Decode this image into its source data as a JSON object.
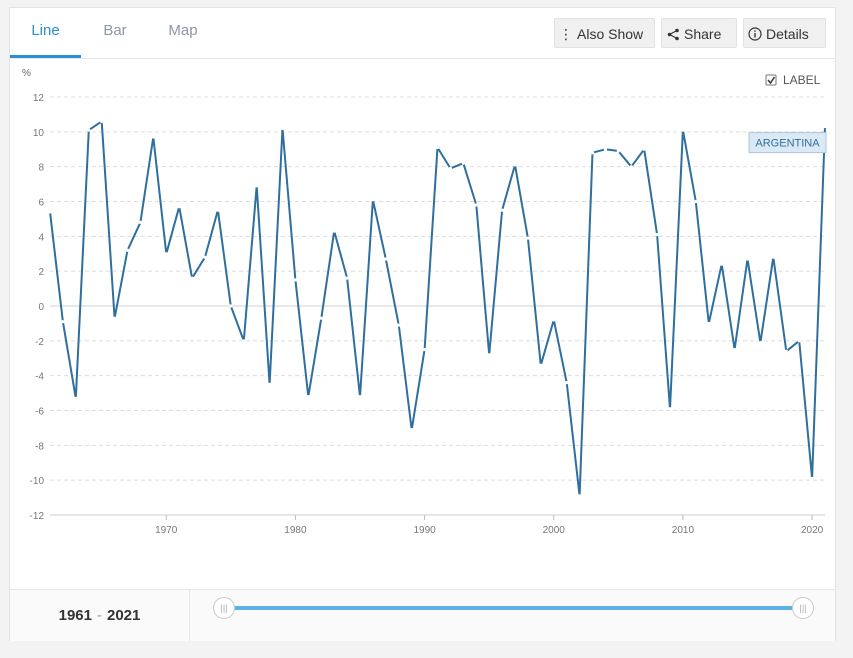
{
  "tabs": [
    {
      "label": "Line",
      "active": true
    },
    {
      "label": "Bar",
      "active": false
    },
    {
      "label": "Map",
      "active": false
    }
  ],
  "toolbar": {
    "also_show": "Also Show",
    "share": "Share",
    "details": "Details"
  },
  "label_toggle": {
    "label": "LABEL",
    "checked": true
  },
  "slider": {
    "start": "1961",
    "end": "2021",
    "separator": "-"
  },
  "colors": {
    "series": "#2e6f9e",
    "accent": "#2b8fd6",
    "grid": "#dddddd",
    "label_bg": "#dbe9f4"
  },
  "chart_data": {
    "type": "line",
    "ylabel": "%",
    "ylim": [
      -12,
      12
    ],
    "yticks": [
      12,
      10,
      8,
      6,
      4,
      2,
      0,
      -2,
      -4,
      -6,
      -8,
      -10,
      -12
    ],
    "xlim": [
      1961,
      2021
    ],
    "xticks": [
      1970,
      1980,
      1990,
      2000,
      2010,
      2020
    ],
    "grid": true,
    "series": [
      {
        "name": "ARGENTINA",
        "x": [
          1961,
          1962,
          1963,
          1964,
          1965,
          1966,
          1967,
          1968,
          1969,
          1970,
          1971,
          1972,
          1973,
          1974,
          1975,
          1976,
          1977,
          1978,
          1979,
          1980,
          1981,
          1982,
          1983,
          1984,
          1985,
          1986,
          1987,
          1988,
          1989,
          1990,
          1991,
          1992,
          1993,
          1994,
          1995,
          1996,
          1997,
          1998,
          1999,
          2000,
          2001,
          2002,
          2003,
          2004,
          2005,
          2006,
          2007,
          2008,
          2009,
          2010,
          2011,
          2012,
          2013,
          2014,
          2015,
          2016,
          2017,
          2018,
          2019,
          2020,
          2021
        ],
        "values": [
          5.4,
          -0.9,
          -5.3,
          10.1,
          10.6,
          -0.7,
          3.2,
          4.8,
          9.7,
          3.0,
          5.7,
          1.6,
          2.8,
          5.5,
          0.0,
          -2.0,
          6.9,
          -4.5,
          10.2,
          1.5,
          -5.2,
          -0.7,
          4.3,
          1.6,
          -5.2,
          6.1,
          2.7,
          -1.1,
          -7.1,
          -2.5,
          9.1,
          7.9,
          8.2,
          5.8,
          -2.8,
          5.5,
          8.1,
          3.9,
          -3.4,
          -0.8,
          -4.4,
          -10.9,
          8.8,
          9.0,
          8.9,
          8.0,
          9.0,
          4.1,
          -5.9,
          10.1,
          6.0,
          -1.0,
          2.4,
          -2.5,
          2.7,
          -2.1,
          2.8,
          -2.6,
          -2.0,
          -9.9,
          10.3
        ]
      }
    ]
  }
}
